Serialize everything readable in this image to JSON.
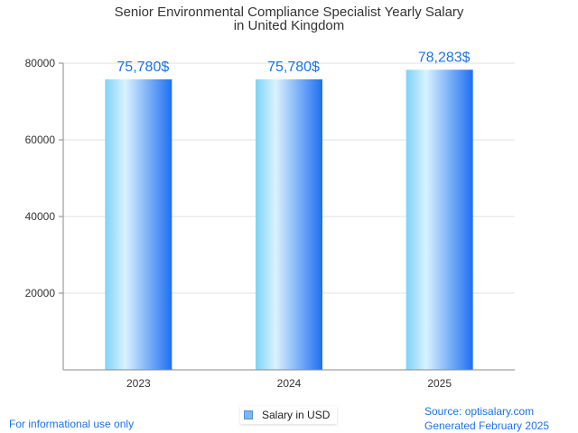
{
  "chart_data": {
    "type": "bar",
    "title": "Senior Environmental Compliance Specialist Yearly Salary",
    "subtitle": "in United Kingdom",
    "categories": [
      "2023",
      "2024",
      "2025"
    ],
    "series": [
      {
        "name": "Salary in USD",
        "values": [
          75780,
          75780,
          78283
        ]
      }
    ],
    "data_labels": [
      "75,780$",
      "75,780$",
      "78,283$"
    ],
    "y_ticks": [
      "20000",
      "40000",
      "60000",
      "80000"
    ],
    "ylim": [
      0,
      80000
    ],
    "grid": true,
    "legend_position": "bottom-center",
    "colors": {
      "bar_light": "#d9f2ff",
      "bar_mid": "#7fd3f7",
      "bar_dark": "#1e6ff2",
      "label": "#1a73e8"
    }
  },
  "footer": {
    "left": "For informational use only",
    "source": "Source: optisalary.com",
    "generated": "Generated February 2025"
  }
}
